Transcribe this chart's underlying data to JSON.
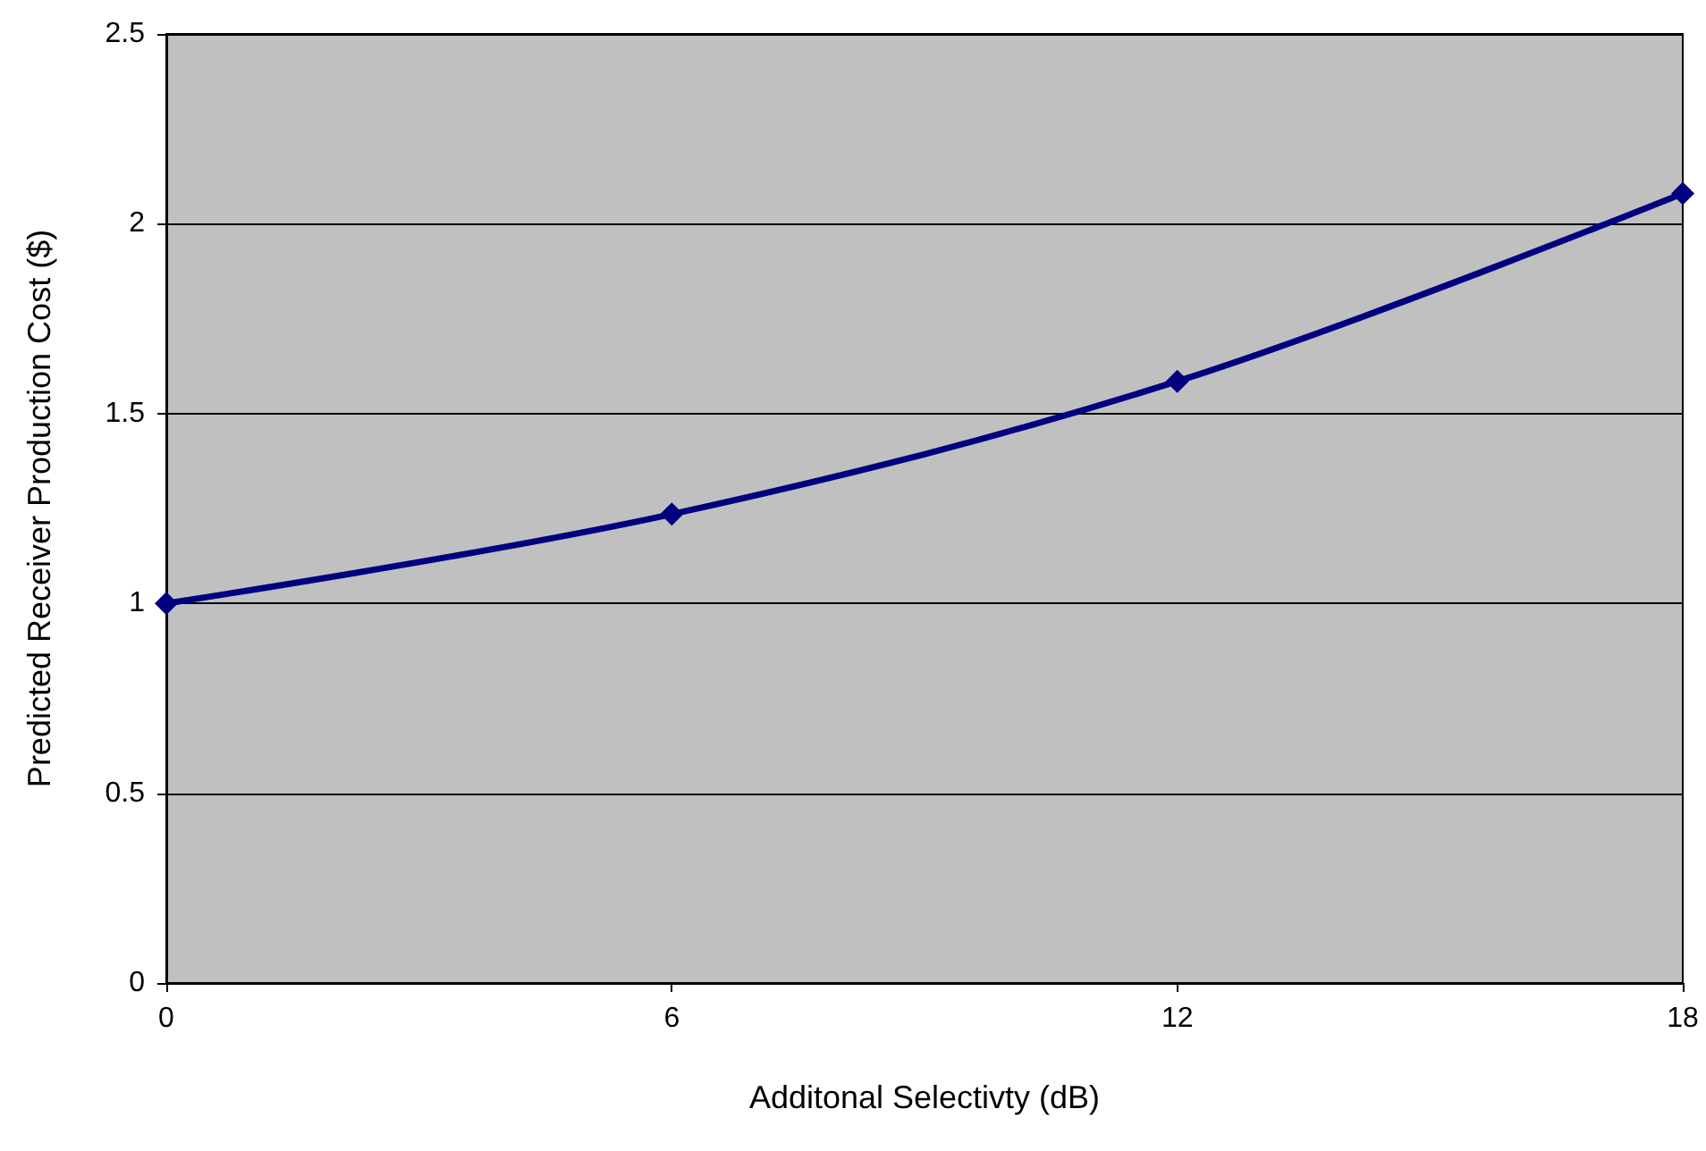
{
  "chart_data": {
    "type": "line",
    "xlabel": "Additonal Selectivty (dB)",
    "ylabel": "Predicted Receiver Production Cost ($)",
    "x": [
      0,
      6,
      12,
      18
    ],
    "series": [
      {
        "color": "#000080",
        "values": [
          1.0,
          1.235,
          1.585,
          2.08
        ]
      }
    ],
    "xlim": [
      0,
      18
    ],
    "xticks": [
      0,
      6,
      12,
      18
    ],
    "ylim": [
      0,
      2.5
    ],
    "yticks": [
      0,
      0.5,
      1,
      1.5,
      2,
      2.5
    ],
    "grid": "y",
    "marker": "diamond",
    "line_style": "solid"
  }
}
